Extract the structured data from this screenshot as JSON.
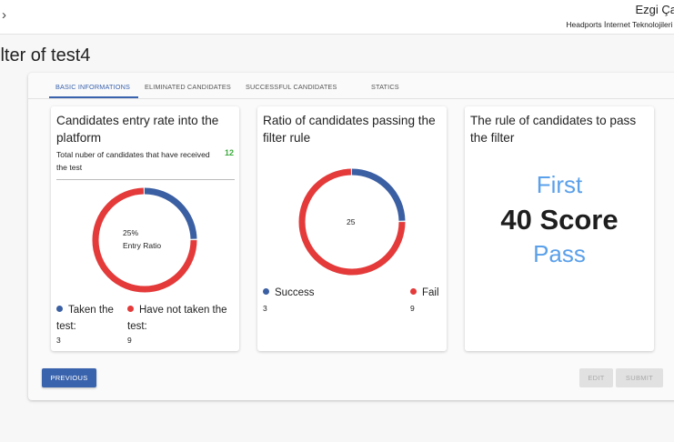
{
  "header": {
    "user_name": "Ezgi Ça",
    "company": "Headports İnternet Teknolojileri A"
  },
  "page": {
    "title": "ilter of test4"
  },
  "tabs": [
    {
      "label": "BASIC INFORMATIONS",
      "active": true
    },
    {
      "label": "ELIMINATED CANDIDATES",
      "active": false
    },
    {
      "label": "SUCCESSFUL CANDIDATES",
      "active": false
    },
    {
      "label": "STATICS",
      "active": false
    }
  ],
  "cards": {
    "entry": {
      "title": "Candidates entry rate into the platform",
      "subtitle": "Total nuber of candidates that have received the test",
      "count": "12",
      "center_percent": "25%",
      "center_label": "Entry Ratio",
      "legend": [
        {
          "label": "Taken the test:",
          "value": "3",
          "color": "#3b5fa3"
        },
        {
          "label": "Have not taken the test:",
          "value": "9",
          "color": "#e43a3a"
        }
      ]
    },
    "ratio": {
      "title": "Ratio of candidates passing the filter rule",
      "center_value": "25",
      "legend": [
        {
          "label": "Success",
          "value": "3",
          "color": "#3b5fa3"
        },
        {
          "label": "Fail",
          "value": "9",
          "color": "#e43a3a"
        }
      ]
    },
    "rule": {
      "title": "The rule of candidates to pass the filter",
      "line1": "First",
      "line2": "40 Score",
      "line3": "Pass"
    }
  },
  "chart_data": [
    {
      "type": "pie",
      "categories": [
        "Taken the test",
        "Have not taken the test"
      ],
      "values": [
        3,
        9
      ]
    },
    {
      "type": "pie",
      "categories": [
        "Success",
        "Fail"
      ],
      "values": [
        3,
        9
      ]
    }
  ],
  "buttons": {
    "previous": "PREVIOUS",
    "edit": "EDIT",
    "submit": "SUBMIT"
  },
  "colors": {
    "accent": "#3a63ad",
    "success_series": "#3b5fa3",
    "fail_series": "#e43a3a",
    "rule_highlight": "#5aa0ea",
    "count_green": "#3caa3c"
  },
  "icons": {
    "back": "chevron-right-icon"
  }
}
